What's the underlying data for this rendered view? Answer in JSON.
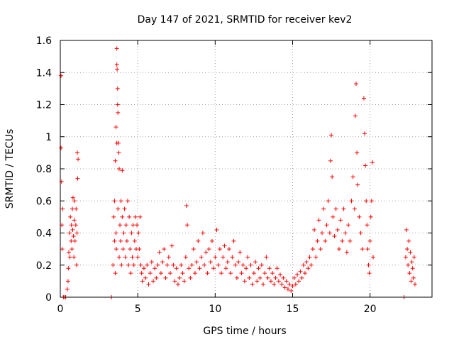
{
  "chart_data": {
    "type": "scatter",
    "title": "Day 147 of 2021, SRMTID for receiver kev2",
    "xlabel": "GPS time / hours",
    "ylabel": "SRMTID / TECUs",
    "xlim": [
      0,
      24
    ],
    "ylim": [
      0,
      1.6
    ],
    "grid": true,
    "marker": "+",
    "colors": {
      "series": "#ff0000",
      "axis": "#000000",
      "grid": "#a0a0a0"
    },
    "x_ticks": [
      0,
      5,
      10,
      15,
      20
    ],
    "x_tick_labels": [
      "0",
      "5",
      "10",
      "15",
      "20"
    ],
    "y_ticks": [
      0,
      0.2,
      0.4,
      0.6,
      0.8,
      1.0,
      1.2,
      1.4,
      1.6
    ],
    "y_tick_labels": [
      "0",
      "0.2",
      "0.4",
      "0.6",
      "0.8",
      "1",
      "1.2",
      "1.4",
      "1.6"
    ],
    "series": [
      {
        "name": "SRMTID",
        "points": [
          [
            0.05,
            0.93
          ],
          [
            0.05,
            1.38
          ],
          [
            0.08,
            0.72
          ],
          [
            0.1,
            0.45
          ],
          [
            0.12,
            0.3
          ],
          [
            0.15,
            0.55
          ],
          [
            0.2,
            0.0
          ],
          [
            0.3,
            0.0
          ],
          [
            0.35,
            0.0
          ],
          [
            0.45,
            0.05
          ],
          [
            0.5,
            0.1
          ],
          [
            0.52,
            0.18
          ],
          [
            0.55,
            0.28
          ],
          [
            0.6,
            0.4
          ],
          [
            0.62,
            0.25
          ],
          [
            0.65,
            0.5
          ],
          [
            0.7,
            0.35
          ],
          [
            0.72,
            0.45
          ],
          [
            0.75,
            0.3
          ],
          [
            0.78,
            0.55
          ],
          [
            0.8,
            0.42
          ],
          [
            0.82,
            0.62
          ],
          [
            0.85,
            0.38
          ],
          [
            0.88,
            0.25
          ],
          [
            0.9,
            0.48
          ],
          [
            0.92,
            0.6
          ],
          [
            0.95,
            0.35
          ],
          [
            1.0,
            0.45
          ],
          [
            1.02,
            0.55
          ],
          [
            1.05,
            0.2
          ],
          [
            1.08,
            0.4
          ],
          [
            1.1,
            0.9
          ],
          [
            1.12,
            0.74
          ],
          [
            1.15,
            0.86
          ],
          [
            3.3,
            0.0
          ],
          [
            3.4,
            0.2
          ],
          [
            3.45,
            0.5
          ],
          [
            3.5,
            0.35
          ],
          [
            3.5,
            0.6
          ],
          [
            3.55,
            0.85
          ],
          [
            3.55,
            0.15
          ],
          [
            3.6,
            1.06
          ],
          [
            3.6,
            0.4
          ],
          [
            3.62,
            0.3
          ],
          [
            3.65,
            1.55
          ],
          [
            3.65,
            1.45
          ],
          [
            3.65,
            0.96
          ],
          [
            3.67,
            1.42
          ],
          [
            3.7,
            1.3
          ],
          [
            3.7,
            1.2
          ],
          [
            3.72,
            1.15
          ],
          [
            3.72,
            0.55
          ],
          [
            3.75,
            0.96
          ],
          [
            3.78,
            0.9
          ],
          [
            3.8,
            0.8
          ],
          [
            3.8,
            0.25
          ],
          [
            3.85,
            0.45
          ],
          [
            3.9,
            0.35
          ],
          [
            3.92,
            0.6
          ],
          [
            3.95,
            0.2
          ],
          [
            4.0,
            0.5
          ],
          [
            4.0,
            0.79
          ],
          [
            4.05,
            0.3
          ],
          [
            4.1,
            0.4
          ],
          [
            4.15,
            0.55
          ],
          [
            4.2,
            0.25
          ],
          [
            4.25,
            0.45
          ],
          [
            4.3,
            0.35
          ],
          [
            4.35,
            0.6
          ],
          [
            4.4,
            0.2
          ],
          [
            4.45,
            0.5
          ],
          [
            4.5,
            0.3
          ],
          [
            4.55,
            0.15
          ],
          [
            4.6,
            0.4
          ],
          [
            4.65,
            0.25
          ],
          [
            4.7,
            0.45
          ],
          [
            4.75,
            0.2
          ],
          [
            4.8,
            0.35
          ],
          [
            4.85,
            0.5
          ],
          [
            4.9,
            0.3
          ],
          [
            4.95,
            0.45
          ],
          [
            5.0,
            0.25
          ],
          [
            5.05,
            0.4
          ],
          [
            5.1,
            0.3
          ],
          [
            5.15,
            0.5
          ],
          [
            5.2,
            0.2
          ],
          [
            5.25,
            0.15
          ],
          [
            5.3,
            0.1
          ],
          [
            5.4,
            0.18
          ],
          [
            5.5,
            0.12
          ],
          [
            5.6,
            0.2
          ],
          [
            5.7,
            0.08
          ],
          [
            5.8,
            0.15
          ],
          [
            5.9,
            0.22
          ],
          [
            6.0,
            0.1
          ],
          [
            6.1,
            0.18
          ],
          [
            6.2,
            0.12
          ],
          [
            6.3,
            0.2
          ],
          [
            6.4,
            0.28
          ],
          [
            6.5,
            0.15
          ],
          [
            6.6,
            0.22
          ],
          [
            6.7,
            0.3
          ],
          [
            6.8,
            0.12
          ],
          [
            6.9,
            0.2
          ],
          [
            7.0,
            0.25
          ],
          [
            7.1,
            0.15
          ],
          [
            7.2,
            0.32
          ],
          [
            7.3,
            0.2
          ],
          [
            7.4,
            0.1
          ],
          [
            7.5,
            0.18
          ],
          [
            7.6,
            0.08
          ],
          [
            7.7,
            0.12
          ],
          [
            7.8,
            0.2
          ],
          [
            7.9,
            0.15
          ],
          [
            8.0,
            0.1
          ],
          [
            8.1,
            0.25
          ],
          [
            8.15,
            0.57
          ],
          [
            8.2,
            0.45
          ],
          [
            8.3,
            0.18
          ],
          [
            8.4,
            0.12
          ],
          [
            8.5,
            0.2
          ],
          [
            8.6,
            0.3
          ],
          [
            8.7,
            0.15
          ],
          [
            8.8,
            0.22
          ],
          [
            8.9,
            0.35
          ],
          [
            9.0,
            0.18
          ],
          [
            9.1,
            0.25
          ],
          [
            9.2,
            0.4
          ],
          [
            9.3,
            0.2
          ],
          [
            9.4,
            0.28
          ],
          [
            9.5,
            0.15
          ],
          [
            9.6,
            0.3
          ],
          [
            9.7,
            0.22
          ],
          [
            9.8,
            0.35
          ],
          [
            9.9,
            0.18
          ],
          [
            10.0,
            0.25
          ],
          [
            10.1,
            0.42
          ],
          [
            10.2,
            0.2
          ],
          [
            10.3,
            0.3
          ],
          [
            10.4,
            0.15
          ],
          [
            10.5,
            0.25
          ],
          [
            10.6,
            0.32
          ],
          [
            10.7,
            0.18
          ],
          [
            10.8,
            0.22
          ],
          [
            10.9,
            0.3
          ],
          [
            11.0,
            0.15
          ],
          [
            11.1,
            0.25
          ],
          [
            11.2,
            0.35
          ],
          [
            11.3,
            0.2
          ],
          [
            11.4,
            0.12
          ],
          [
            11.5,
            0.22
          ],
          [
            11.6,
            0.28
          ],
          [
            11.7,
            0.15
          ],
          [
            11.8,
            0.2
          ],
          [
            11.9,
            0.1
          ],
          [
            12.0,
            0.18
          ],
          [
            12.1,
            0.25
          ],
          [
            12.2,
            0.12
          ],
          [
            12.3,
            0.2
          ],
          [
            12.4,
            0.08
          ],
          [
            12.5,
            0.15
          ],
          [
            12.6,
            0.22
          ],
          [
            12.7,
            0.1
          ],
          [
            12.8,
            0.18
          ],
          [
            12.9,
            0.12
          ],
          [
            13.0,
            0.2
          ],
          [
            13.1,
            0.08
          ],
          [
            13.2,
            0.15
          ],
          [
            13.3,
            0.25
          ],
          [
            13.4,
            0.12
          ],
          [
            13.5,
            0.18
          ],
          [
            13.6,
            0.1
          ],
          [
            13.7,
            0.15
          ],
          [
            13.8,
            0.08
          ],
          [
            13.9,
            0.12
          ],
          [
            14.0,
            0.18
          ],
          [
            14.1,
            0.1
          ],
          [
            14.2,
            0.14
          ],
          [
            14.3,
            0.08
          ],
          [
            14.4,
            0.12
          ],
          [
            14.5,
            0.06
          ],
          [
            14.6,
            0.1
          ],
          [
            14.7,
            0.05
          ],
          [
            14.8,
            0.08
          ],
          [
            14.9,
            0.04
          ],
          [
            15.0,
            0.07
          ],
          [
            15.1,
            0.12
          ],
          [
            15.2,
            0.08
          ],
          [
            15.3,
            0.14
          ],
          [
            15.4,
            0.1
          ],
          [
            15.5,
            0.16
          ],
          [
            15.6,
            0.12
          ],
          [
            15.7,
            0.2
          ],
          [
            15.8,
            0.15
          ],
          [
            15.9,
            0.22
          ],
          [
            16.0,
            0.18
          ],
          [
            16.1,
            0.25
          ],
          [
            16.2,
            0.2
          ],
          [
            16.3,
            0.3
          ],
          [
            16.4,
            0.42
          ],
          [
            16.5,
            0.25
          ],
          [
            16.6,
            0.35
          ],
          [
            16.7,
            0.48
          ],
          [
            16.8,
            0.3
          ],
          [
            16.9,
            0.4
          ],
          [
            17.0,
            0.55
          ],
          [
            17.1,
            0.35
          ],
          [
            17.2,
            0.45
          ],
          [
            17.3,
            0.6
          ],
          [
            17.4,
            0.4
          ],
          [
            17.45,
            0.85
          ],
          [
            17.5,
            1.01
          ],
          [
            17.55,
            0.75
          ],
          [
            17.6,
            0.5
          ],
          [
            17.7,
            0.38
          ],
          [
            17.8,
            0.55
          ],
          [
            17.9,
            0.42
          ],
          [
            18.0,
            0.3
          ],
          [
            18.1,
            0.48
          ],
          [
            18.2,
            0.35
          ],
          [
            18.3,
            0.55
          ],
          [
            18.4,
            0.4
          ],
          [
            18.5,
            0.28
          ],
          [
            18.6,
            0.45
          ],
          [
            18.7,
            0.35
          ],
          [
            18.8,
            0.6
          ],
          [
            18.9,
            0.75
          ],
          [
            19.0,
            0.55
          ],
          [
            19.05,
            1.13
          ],
          [
            19.1,
            1.33
          ],
          [
            19.15,
            0.9
          ],
          [
            19.2,
            0.7
          ],
          [
            19.3,
            0.5
          ],
          [
            19.4,
            0.4
          ],
          [
            19.5,
            0.3
          ],
          [
            19.6,
            1.24
          ],
          [
            19.65,
            1.02
          ],
          [
            19.7,
            0.82
          ],
          [
            19.75,
            0.6
          ],
          [
            19.8,
            0.45
          ],
          [
            19.85,
            0.3
          ],
          [
            19.9,
            0.2
          ],
          [
            19.95,
            0.15
          ],
          [
            20.0,
            0.35
          ],
          [
            20.05,
            0.5
          ],
          [
            20.1,
            0.6
          ],
          [
            20.15,
            0.84
          ],
          [
            20.2,
            0.25
          ],
          [
            22.2,
            0.0
          ],
          [
            22.3,
            0.25
          ],
          [
            22.35,
            0.42
          ],
          [
            22.4,
            0.3
          ],
          [
            22.45,
            0.2
          ],
          [
            22.5,
            0.35
          ],
          [
            22.55,
            0.15
          ],
          [
            22.6,
            0.28
          ],
          [
            22.65,
            0.1
          ],
          [
            22.7,
            0.22
          ],
          [
            22.75,
            0.18
          ],
          [
            22.8,
            0.12
          ],
          [
            22.85,
            0.25
          ],
          [
            22.9,
            0.08
          ]
        ]
      }
    ]
  }
}
